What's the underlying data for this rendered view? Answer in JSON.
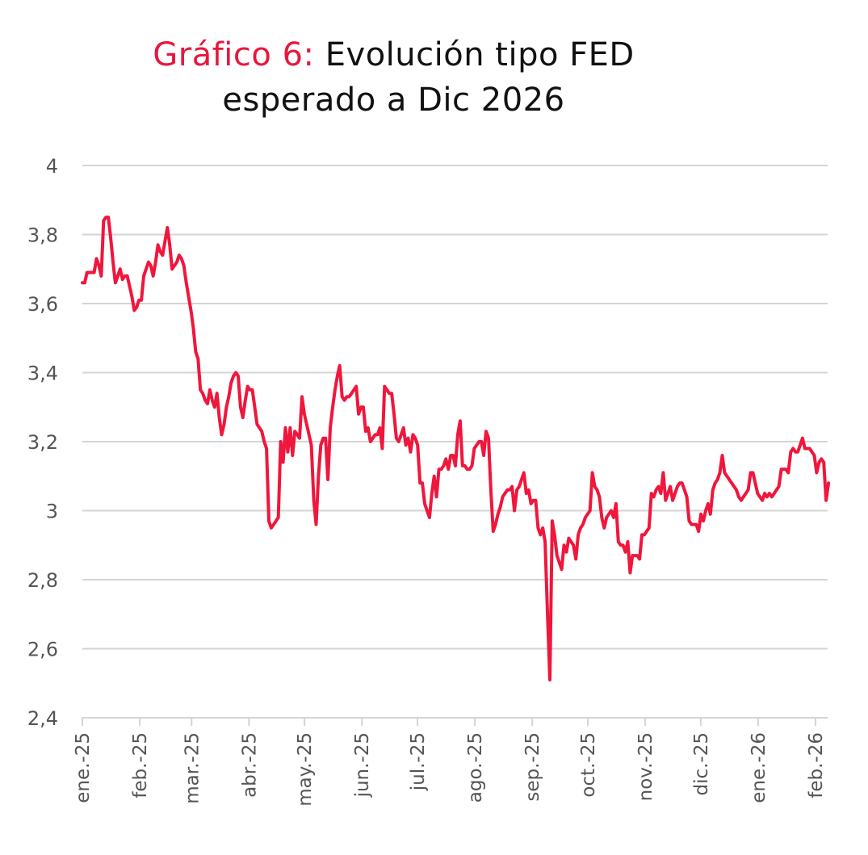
{
  "chart_data": {
    "type": "line",
    "title_prefix": "Gráfico 6:",
    "title_line1": "Evolución tipo FED",
    "title_line2": "esperado a Dic 2026",
    "xlabel": "",
    "ylabel": "",
    "ylim": [
      2.4,
      4
    ],
    "yticks": [
      4,
      3.8,
      3.6,
      3.4,
      3.2,
      3,
      2.8,
      2.6,
      2.4
    ],
    "ytick_labels": [
      "4",
      "3,8",
      "3,6",
      "3,4",
      "3,2",
      "3",
      "2,8",
      "2,6",
      "2,4"
    ],
    "xtick_labels": [
      "ene.-25",
      "feb.-25",
      "mar.-25",
      "abr.-25",
      "may.-25",
      "jun.-25",
      "jul.-25",
      "ago.-25",
      "sep.-25",
      "oct.-25",
      "nov.-25",
      "dic.-25",
      "ene.-26",
      "feb.-26"
    ],
    "xtick_days": [
      0,
      31,
      59,
      90,
      120,
      151,
      181,
      212,
      243,
      273,
      304,
      334,
      365,
      396
    ],
    "x_max_day": 403,
    "grid": true,
    "legend": "none",
    "colors": {
      "series": "#f0163c",
      "grid": "#d4d4d4",
      "title_accent": "#e8173d"
    },
    "series": [
      {
        "name": "Tipo FED esperado a Dic 2026",
        "day_value_pairs": [
          [
            0,
            3.66
          ],
          [
            1,
            3.66
          ],
          [
            2,
            3.69
          ],
          [
            4,
            3.69
          ],
          [
            5,
            3.69
          ],
          [
            6,
            3.73
          ],
          [
            7,
            3.71
          ],
          [
            8,
            3.68
          ],
          [
            9,
            3.84
          ],
          [
            10,
            3.85
          ],
          [
            11,
            3.85
          ],
          [
            12,
            3.79
          ],
          [
            13,
            3.72
          ],
          [
            14,
            3.66
          ],
          [
            15,
            3.68
          ],
          [
            16,
            3.7
          ],
          [
            17,
            3.67
          ],
          [
            18,
            3.68
          ],
          [
            19,
            3.68
          ],
          [
            20,
            3.65
          ],
          [
            21,
            3.62
          ],
          [
            22,
            3.58
          ],
          [
            23,
            3.59
          ],
          [
            24,
            3.61
          ],
          [
            25,
            3.61
          ],
          [
            26,
            3.68
          ],
          [
            27,
            3.7
          ],
          [
            28,
            3.72
          ],
          [
            29,
            3.71
          ],
          [
            30,
            3.68
          ],
          [
            31,
            3.72
          ],
          [
            32,
            3.77
          ],
          [
            33,
            3.75
          ],
          [
            34,
            3.74
          ],
          [
            35,
            3.78
          ],
          [
            36,
            3.82
          ],
          [
            37,
            3.77
          ],
          [
            38,
            3.7
          ],
          [
            39,
            3.71
          ],
          [
            40,
            3.72
          ],
          [
            41,
            3.74
          ],
          [
            42,
            3.73
          ],
          [
            43,
            3.71
          ],
          [
            44,
            3.66
          ],
          [
            45,
            3.62
          ],
          [
            46,
            3.58
          ],
          [
            47,
            3.53
          ],
          [
            48,
            3.46
          ],
          [
            49,
            3.44
          ],
          [
            50,
            3.35
          ],
          [
            51,
            3.34
          ],
          [
            52,
            3.32
          ],
          [
            53,
            3.31
          ],
          [
            54,
            3.35
          ],
          [
            55,
            3.32
          ],
          [
            56,
            3.3
          ],
          [
            57,
            3.34
          ],
          [
            58,
            3.27
          ],
          [
            59,
            3.22
          ],
          [
            60,
            3.25
          ],
          [
            61,
            3.3
          ],
          [
            62,
            3.33
          ],
          [
            63,
            3.37
          ],
          [
            64,
            3.39
          ],
          [
            65,
            3.4
          ],
          [
            66,
            3.39
          ],
          [
            67,
            3.3
          ],
          [
            68,
            3.27
          ],
          [
            69,
            3.32
          ],
          [
            70,
            3.36
          ],
          [
            71,
            3.35
          ],
          [
            72,
            3.35
          ],
          [
            73,
            3.3
          ],
          [
            74,
            3.25
          ],
          [
            75,
            3.24
          ],
          [
            76,
            3.23
          ],
          [
            77,
            3.2
          ],
          [
            78,
            3.18
          ],
          [
            79,
            2.97
          ],
          [
            80,
            2.95
          ],
          [
            81,
            2.96
          ],
          [
            82,
            2.97
          ],
          [
            83,
            2.98
          ],
          [
            84,
            3.2
          ],
          [
            85,
            3.14
          ],
          [
            86,
            3.24
          ],
          [
            87,
            3.17
          ],
          [
            88,
            3.24
          ],
          [
            89,
            3.16
          ],
          [
            90,
            3.23
          ],
          [
            91,
            3.22
          ],
          [
            92,
            3.21
          ],
          [
            93,
            3.33
          ],
          [
            94,
            3.28
          ],
          [
            95,
            3.25
          ],
          [
            96,
            3.22
          ],
          [
            97,
            3.19
          ],
          [
            98,
            3.03
          ],
          [
            99,
            2.96
          ],
          [
            100,
            3.1
          ],
          [
            101,
            3.19
          ],
          [
            102,
            3.21
          ],
          [
            103,
            3.21
          ],
          [
            104,
            3.09
          ],
          [
            105,
            3.24
          ],
          [
            106,
            3.3
          ],
          [
            107,
            3.35
          ],
          [
            108,
            3.39
          ],
          [
            109,
            3.42
          ],
          [
            110,
            3.33
          ],
          [
            111,
            3.32
          ],
          [
            112,
            3.33
          ],
          [
            113,
            3.33
          ],
          [
            114,
            3.34
          ],
          [
            115,
            3.35
          ],
          [
            116,
            3.36
          ],
          [
            117,
            3.28
          ],
          [
            118,
            3.3
          ],
          [
            119,
            3.3
          ],
          [
            120,
            3.23
          ],
          [
            121,
            3.24
          ],
          [
            122,
            3.2
          ],
          [
            123,
            3.21
          ],
          [
            124,
            3.22
          ],
          [
            125,
            3.22
          ],
          [
            126,
            3.24
          ],
          [
            127,
            3.18
          ],
          [
            128,
            3.36
          ],
          [
            129,
            3.35
          ],
          [
            130,
            3.34
          ],
          [
            131,
            3.34
          ],
          [
            132,
            3.28
          ],
          [
            133,
            3.21
          ],
          [
            134,
            3.2
          ],
          [
            135,
            3.22
          ],
          [
            136,
            3.24
          ],
          [
            137,
            3.19
          ],
          [
            138,
            3.21
          ],
          [
            139,
            3.17
          ],
          [
            140,
            3.22
          ],
          [
            141,
            3.21
          ],
          [
            142,
            3.19
          ],
          [
            143,
            3.08
          ],
          [
            144,
            3.08
          ],
          [
            145,
            3.02
          ],
          [
            146,
            3.0
          ],
          [
            147,
            2.98
          ],
          [
            148,
            3.05
          ],
          [
            149,
            3.1
          ],
          [
            150,
            3.04
          ],
          [
            151,
            3.12
          ],
          [
            152,
            3.12
          ],
          [
            153,
            3.13
          ],
          [
            154,
            3.15
          ],
          [
            155,
            3.12
          ],
          [
            156,
            3.16
          ],
          [
            157,
            3.16
          ],
          [
            158,
            3.13
          ],
          [
            159,
            3.22
          ],
          [
            160,
            3.26
          ],
          [
            161,
            3.13
          ],
          [
            162,
            3.13
          ],
          [
            163,
            3.12
          ],
          [
            164,
            3.12
          ],
          [
            165,
            3.13
          ],
          [
            166,
            3.18
          ],
          [
            167,
            3.19
          ],
          [
            168,
            3.2
          ],
          [
            169,
            3.2
          ],
          [
            170,
            3.16
          ],
          [
            171,
            3.23
          ],
          [
            172,
            3.21
          ],
          [
            173,
            3.06
          ],
          [
            174,
            2.94
          ],
          [
            175,
            2.96
          ],
          [
            176,
            2.99
          ],
          [
            177,
            3.01
          ],
          [
            178,
            3.04
          ],
          [
            179,
            3.05
          ],
          [
            180,
            3.06
          ],
          [
            181,
            3.06
          ],
          [
            182,
            3.07
          ],
          [
            183,
            3.0
          ],
          [
            184,
            3.06
          ],
          [
            185,
            3.07
          ],
          [
            186,
            3.09
          ],
          [
            187,
            3.11
          ],
          [
            188,
            3.05
          ],
          [
            189,
            3.06
          ],
          [
            190,
            3.02
          ],
          [
            191,
            3.03
          ],
          [
            192,
            3.03
          ],
          [
            193,
            2.95
          ],
          [
            194,
            2.93
          ],
          [
            195,
            2.95
          ],
          [
            196,
            2.91
          ],
          [
            197,
            2.7
          ],
          [
            198,
            2.51
          ],
          [
            199,
            2.97
          ],
          [
            200,
            2.93
          ],
          [
            201,
            2.87
          ],
          [
            202,
            2.85
          ],
          [
            203,
            2.83
          ],
          [
            204,
            2.9
          ],
          [
            205,
            2.88
          ],
          [
            206,
            2.92
          ],
          [
            207,
            2.91
          ],
          [
            208,
            2.9
          ],
          [
            209,
            2.86
          ],
          [
            210,
            2.93
          ],
          [
            211,
            2.95
          ],
          [
            212,
            2.96
          ],
          [
            213,
            2.98
          ],
          [
            214,
            2.99
          ],
          [
            215,
            3.0
          ],
          [
            216,
            3.11
          ],
          [
            217,
            3.07
          ],
          [
            218,
            3.06
          ],
          [
            219,
            3.04
          ],
          [
            220,
            2.98
          ],
          [
            221,
            2.95
          ],
          [
            222,
            2.98
          ],
          [
            223,
            2.99
          ],
          [
            224,
            3.0
          ],
          [
            225,
            2.98
          ],
          [
            226,
            3.02
          ],
          [
            227,
            2.91
          ],
          [
            228,
            2.9
          ],
          [
            229,
            2.9
          ],
          [
            230,
            2.88
          ],
          [
            231,
            2.91
          ],
          [
            232,
            2.82
          ],
          [
            233,
            2.87
          ],
          [
            234,
            2.87
          ],
          [
            235,
            2.87
          ],
          [
            236,
            2.86
          ],
          [
            237,
            2.93
          ],
          [
            238,
            2.93
          ],
          [
            239,
            2.94
          ],
          [
            240,
            2.95
          ],
          [
            241,
            3.05
          ],
          [
            242,
            3.04
          ],
          [
            243,
            3.06
          ],
          [
            244,
            3.07
          ],
          [
            245,
            3.05
          ],
          [
            246,
            3.11
          ],
          [
            247,
            3.03
          ],
          [
            248,
            3.05
          ],
          [
            249,
            3.07
          ],
          [
            250,
            3.03
          ],
          [
            251,
            3.05
          ],
          [
            252,
            3.07
          ],
          [
            253,
            3.08
          ],
          [
            254,
            3.08
          ],
          [
            255,
            3.06
          ],
          [
            256,
            3.04
          ],
          [
            257,
            2.97
          ],
          [
            258,
            2.96
          ],
          [
            259,
            2.96
          ],
          [
            260,
            2.96
          ],
          [
            261,
            2.94
          ],
          [
            262,
            2.99
          ],
          [
            263,
            2.97
          ],
          [
            264,
            3.0
          ],
          [
            265,
            3.02
          ],
          [
            266,
            2.99
          ],
          [
            267,
            3.06
          ],
          [
            268,
            3.08
          ],
          [
            269,
            3.09
          ],
          [
            270,
            3.11
          ],
          [
            271,
            3.16
          ],
          [
            272,
            3.11
          ],
          [
            273,
            3.1
          ],
          [
            274,
            3.09
          ],
          [
            275,
            3.08
          ],
          [
            276,
            3.07
          ],
          [
            277,
            3.06
          ],
          [
            278,
            3.04
          ],
          [
            279,
            3.03
          ],
          [
            280,
            3.04
          ],
          [
            281,
            3.05
          ],
          [
            282,
            3.06
          ],
          [
            283,
            3.11
          ],
          [
            284,
            3.11
          ],
          [
            285,
            3.08
          ],
          [
            286,
            3.05
          ],
          [
            287,
            3.04
          ],
          [
            288,
            3.03
          ],
          [
            289,
            3.05
          ],
          [
            290,
            3.04
          ],
          [
            291,
            3.05
          ],
          [
            292,
            3.04
          ],
          [
            293,
            3.05
          ],
          [
            294,
            3.06
          ],
          [
            295,
            3.07
          ],
          [
            296,
            3.12
          ],
          [
            297,
            3.12
          ],
          [
            298,
            3.12
          ],
          [
            299,
            3.11
          ],
          [
            300,
            3.17
          ],
          [
            301,
            3.18
          ],
          [
            302,
            3.17
          ],
          [
            303,
            3.17
          ],
          [
            304,
            3.19
          ],
          [
            305,
            3.21
          ],
          [
            306,
            3.18
          ],
          [
            307,
            3.18
          ],
          [
            308,
            3.18
          ],
          [
            309,
            3.17
          ],
          [
            310,
            3.16
          ],
          [
            311,
            3.11
          ],
          [
            312,
            3.14
          ],
          [
            313,
            3.15
          ],
          [
            314,
            3.14
          ],
          [
            315,
            3.03
          ],
          [
            316,
            3.08
          ]
        ],
        "day_scale_note": "x positions in series are compressed trading-day indices spanning 0..316 mapped onto calendar range 0..403"
      }
    ]
  }
}
